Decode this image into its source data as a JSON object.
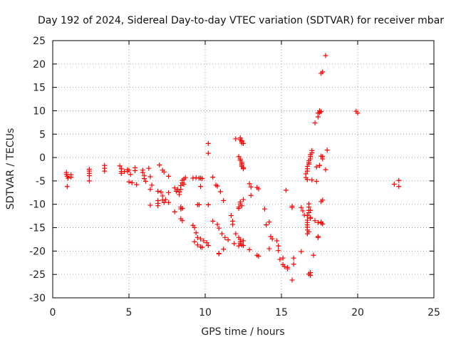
{
  "chart_data": {
    "type": "scatter",
    "title": "Day 192 of 2024, Sidereal Day-to-day VTEC variation (SDTVAR) for receiver mbar",
    "xlabel": "GPS time / hours",
    "ylabel": "SDTVAR / TECUs",
    "xlim": [
      0,
      25
    ],
    "ylim": [
      -30,
      25
    ],
    "xticks": [
      0,
      5,
      10,
      15,
      20,
      25
    ],
    "yticks": [
      -30,
      -25,
      -20,
      -15,
      -10,
      -5,
      0,
      5,
      10,
      15,
      20,
      25
    ],
    "grid": true,
    "marker": "plus",
    "color": "#ff0000",
    "series": [
      {
        "name": "SDTVAR",
        "points": [
          [
            0.9,
            -3.2
          ],
          [
            0.9,
            -3.6
          ],
          [
            0.95,
            -4.0
          ],
          [
            1.0,
            -4.4
          ],
          [
            0.95,
            -6.2
          ],
          [
            1.2,
            -3.7
          ],
          [
            1.2,
            -4.2
          ],
          [
            2.4,
            -2.5
          ],
          [
            2.4,
            -2.9
          ],
          [
            2.4,
            -3.4
          ],
          [
            2.4,
            -3.9
          ],
          [
            2.4,
            -5.0
          ],
          [
            3.4,
            -1.7
          ],
          [
            3.4,
            -2.3
          ],
          [
            3.4,
            -2.9
          ],
          [
            4.4,
            -1.8
          ],
          [
            4.5,
            -2.4
          ],
          [
            4.5,
            -3.0
          ],
          [
            4.5,
            -3.4
          ],
          [
            4.7,
            -3.0
          ],
          [
            4.9,
            -3.0
          ],
          [
            4.9,
            -2.6
          ],
          [
            5.0,
            -2.7
          ],
          [
            5.4,
            -2.2
          ],
          [
            5.4,
            -2.8
          ],
          [
            5.1,
            -3.6
          ],
          [
            5.0,
            -5.2
          ],
          [
            5.2,
            -5.4
          ],
          [
            5.5,
            -5.8
          ],
          [
            5.9,
            -2.7
          ],
          [
            5.9,
            -3.2
          ],
          [
            6.0,
            -3.9
          ],
          [
            6.0,
            -4.5
          ],
          [
            6.1,
            -5.1
          ],
          [
            6.3,
            -2.3
          ],
          [
            6.4,
            -4.1
          ],
          [
            6.5,
            -5.9
          ],
          [
            6.4,
            -6.8
          ],
          [
            6.4,
            -10.2
          ],
          [
            6.9,
            -7.2
          ],
          [
            6.9,
            -9.2
          ],
          [
            6.9,
            -9.8
          ],
          [
            6.9,
            -10.3
          ],
          [
            7.1,
            -7.4
          ],
          [
            7.2,
            -8.2
          ],
          [
            7.2,
            -9.1
          ],
          [
            7.3,
            -9.6
          ],
          [
            7.4,
            -9.0
          ],
          [
            7.0,
            -1.6
          ],
          [
            7.2,
            -2.7
          ],
          [
            7.3,
            -3.1
          ],
          [
            7.6,
            -4.0
          ],
          [
            7.6,
            -7.5
          ],
          [
            7.6,
            -9.6
          ],
          [
            8.0,
            -6.5
          ],
          [
            8.0,
            -11.6
          ],
          [
            8.1,
            -7.2
          ],
          [
            8.2,
            -6.8
          ],
          [
            8.3,
            -7.4
          ],
          [
            8.3,
            -7.9
          ],
          [
            8.4,
            -6.8
          ],
          [
            8.4,
            -6.0
          ],
          [
            8.5,
            -5.4
          ],
          [
            8.5,
            -4.9
          ],
          [
            8.6,
            -4.6
          ],
          [
            8.6,
            -5.7
          ],
          [
            8.7,
            -4.3
          ],
          [
            8.4,
            -10.6
          ],
          [
            8.4,
            -11.0
          ],
          [
            8.5,
            -10.9
          ],
          [
            8.4,
            -13.1
          ],
          [
            8.5,
            -13.5
          ],
          [
            9.2,
            -4.4
          ],
          [
            9.4,
            -4.3
          ],
          [
            9.6,
            -4.4
          ],
          [
            9.7,
            -4.4
          ],
          [
            9.8,
            -4.5
          ],
          [
            9.7,
            -6.2
          ],
          [
            9.5,
            -10.1
          ],
          [
            9.6,
            -10.1
          ],
          [
            9.2,
            -14.5
          ],
          [
            9.3,
            -15.0
          ],
          [
            9.4,
            -16.1
          ],
          [
            9.5,
            -17.1
          ],
          [
            9.7,
            -17.4
          ],
          [
            9.9,
            -17.8
          ],
          [
            9.3,
            -18.0
          ],
          [
            9.5,
            -18.7
          ],
          [
            9.7,
            -19.1
          ],
          [
            9.8,
            -19.2
          ],
          [
            10.2,
            -18.8
          ],
          [
            10.1,
            -18.2
          ],
          [
            10.2,
            3.0
          ],
          [
            10.2,
            0.9
          ],
          [
            10.5,
            -4.2
          ],
          [
            10.2,
            -10.1
          ],
          [
            10.7,
            -5.9
          ],
          [
            10.8,
            -6.1
          ],
          [
            11.0,
            -7.3
          ],
          [
            11.2,
            -9.2
          ],
          [
            10.5,
            -13.6
          ],
          [
            10.8,
            -14.3
          ],
          [
            10.9,
            -15.1
          ],
          [
            11.1,
            -16.3
          ],
          [
            11.3,
            -17.1
          ],
          [
            11.5,
            -17.6
          ],
          [
            10.9,
            -20.5
          ],
          [
            10.9,
            -20.6
          ],
          [
            11.2,
            -19.6
          ],
          [
            11.7,
            -12.4
          ],
          [
            11.8,
            -13.6
          ],
          [
            11.8,
            -14.3
          ],
          [
            11.9,
            -18.4
          ],
          [
            12.0,
            -16.3
          ],
          [
            12.0,
            4.0
          ],
          [
            12.3,
            4.2
          ],
          [
            12.3,
            3.8
          ],
          [
            12.4,
            3.6
          ],
          [
            12.4,
            3.4
          ],
          [
            12.4,
            3.1
          ],
          [
            12.5,
            3.0
          ],
          [
            12.2,
            0.2
          ],
          [
            12.3,
            -0.3
          ],
          [
            12.3,
            -0.6
          ],
          [
            12.4,
            -1.0
          ],
          [
            12.4,
            -1.3
          ],
          [
            12.4,
            -1.6
          ],
          [
            12.4,
            -1.9
          ],
          [
            12.5,
            -2.2
          ],
          [
            12.5,
            -2.4
          ],
          [
            12.3,
            -9.5
          ],
          [
            12.3,
            -9.9
          ],
          [
            12.4,
            -10.3
          ],
          [
            12.2,
            -10.6
          ],
          [
            12.2,
            -10.9
          ],
          [
            12.5,
            -9.0
          ],
          [
            12.2,
            -17.1
          ],
          [
            12.3,
            -17.5
          ],
          [
            12.3,
            -18.0
          ],
          [
            12.3,
            -18.4
          ],
          [
            12.4,
            -18.7
          ],
          [
            12.2,
            -18.9
          ],
          [
            12.5,
            -18.8
          ],
          [
            12.5,
            -17.8
          ],
          [
            12.9,
            -5.6
          ],
          [
            13.0,
            -6.3
          ],
          [
            13.4,
            -6.4
          ],
          [
            13.5,
            -6.7
          ],
          [
            13.0,
            -8.1
          ],
          [
            12.9,
            -19.7
          ],
          [
            13.4,
            -20.9
          ],
          [
            13.5,
            -21.1
          ],
          [
            13.9,
            -11.0
          ],
          [
            14.0,
            -14.4
          ],
          [
            14.2,
            -13.8
          ],
          [
            14.3,
            -16.9
          ],
          [
            14.4,
            -17.4
          ],
          [
            14.2,
            -19.5
          ],
          [
            14.7,
            -17.8
          ],
          [
            14.8,
            -18.9
          ],
          [
            14.8,
            -19.9
          ],
          [
            14.9,
            -21.8
          ],
          [
            15.1,
            -21.5
          ],
          [
            15.1,
            -22.9
          ],
          [
            15.2,
            -23.3
          ],
          [
            15.4,
            -23.5
          ],
          [
            15.4,
            -23.8
          ],
          [
            15.3,
            -7.0
          ],
          [
            15.7,
            -10.4
          ],
          [
            15.7,
            -10.7
          ],
          [
            15.8,
            -21.5
          ],
          [
            15.8,
            -22.8
          ],
          [
            15.7,
            -26.2
          ],
          [
            16.3,
            -10.7
          ],
          [
            16.4,
            -11.4
          ],
          [
            16.5,
            -12.3
          ],
          [
            16.7,
            -16.3
          ],
          [
            16.3,
            -20.1
          ],
          [
            16.7,
            -1.9
          ],
          [
            16.8,
            -1.4
          ],
          [
            16.8,
            -1.1
          ],
          [
            16.8,
            -0.7
          ],
          [
            16.9,
            -0.3
          ],
          [
            16.9,
            0.2
          ],
          [
            16.9,
            0.6
          ],
          [
            17.0,
            1.0
          ],
          [
            17.0,
            1.5
          ],
          [
            16.7,
            -2.4
          ],
          [
            16.7,
            -2.9
          ],
          [
            16.6,
            -3.5
          ],
          [
            16.6,
            -4.3
          ],
          [
            16.7,
            -4.7
          ],
          [
            16.8,
            -9.9
          ],
          [
            16.8,
            -10.6
          ],
          [
            16.8,
            -11.3
          ],
          [
            16.8,
            -11.8
          ],
          [
            16.7,
            -12.4
          ],
          [
            16.9,
            -12.8
          ],
          [
            16.7,
            -13.4
          ],
          [
            16.7,
            -13.9
          ],
          [
            16.7,
            -14.4
          ],
          [
            16.7,
            -14.9
          ],
          [
            16.7,
            -15.5
          ],
          [
            16.8,
            -15.9
          ],
          [
            16.9,
            -13.0
          ],
          [
            16.9,
            -11.3
          ],
          [
            16.8,
            -24.9
          ],
          [
            16.9,
            -24.6
          ],
          [
            16.9,
            -25.2
          ],
          [
            17.0,
            -4.8
          ],
          [
            17.3,
            -5.1
          ],
          [
            17.1,
            -20.9
          ],
          [
            17.2,
            -13.5
          ],
          [
            17.3,
            -2.0
          ],
          [
            17.5,
            -1.7
          ],
          [
            17.4,
            -13.9
          ],
          [
            17.2,
            7.4
          ],
          [
            17.4,
            9.5
          ],
          [
            17.5,
            9.6
          ],
          [
            17.5,
            10.0
          ],
          [
            17.6,
            9.8
          ],
          [
            17.4,
            8.7
          ],
          [
            17.6,
            18.0
          ],
          [
            17.7,
            18.3
          ],
          [
            17.9,
            21.8
          ],
          [
            17.6,
            0.3
          ],
          [
            17.7,
            0.2
          ],
          [
            17.7,
            -0.3
          ],
          [
            17.5,
            -1.7
          ],
          [
            17.4,
            -16.9
          ],
          [
            17.4,
            -17.1
          ],
          [
            17.6,
            -9.4
          ],
          [
            17.7,
            -9.1
          ],
          [
            17.6,
            -13.8
          ],
          [
            17.7,
            -14.2
          ],
          [
            17.6,
            -14.0
          ],
          [
            18.0,
            1.6
          ],
          [
            17.9,
            -2.6
          ],
          [
            19.9,
            9.9
          ],
          [
            20.0,
            9.5
          ],
          [
            22.4,
            -5.7
          ],
          [
            22.7,
            -4.9
          ],
          [
            22.7,
            -6.2
          ]
        ]
      }
    ]
  }
}
